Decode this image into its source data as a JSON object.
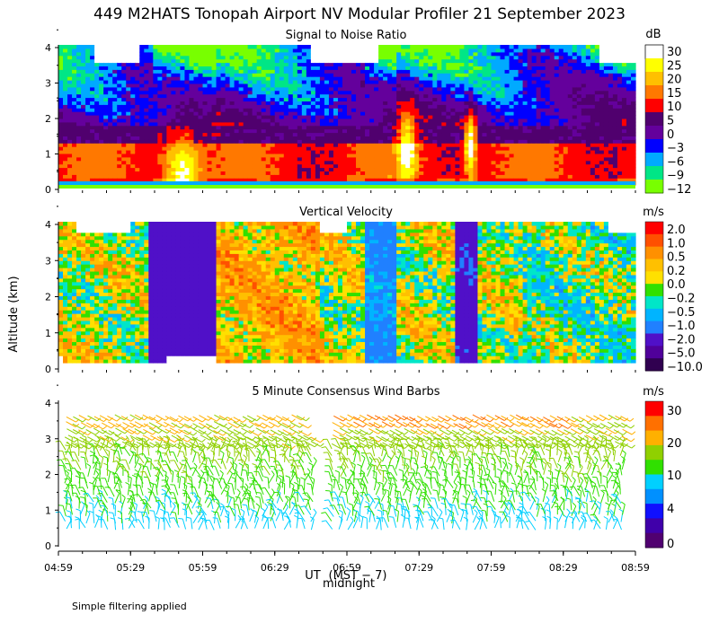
{
  "chart_data": {
    "type": "heatmap",
    "title": "449 M2HATS Tonopah Airport NV Modular Profiler 21 September 2023",
    "ylabel": "Altitude (km)",
    "xlabel": "UT",
    "xlabel_sub": "(MST − 7)",
    "x_marker": "midnight",
    "x_ticks": [
      "04:59",
      "05:29",
      "05:59",
      "06:29",
      "06:59",
      "07:29",
      "07:59",
      "08:29",
      "08:59"
    ],
    "y_ticks": [
      "0",
      "1",
      "2",
      "3",
      "4"
    ],
    "ylim": [
      0,
      4
    ],
    "footnote": "Simple filtering applied",
    "panels": [
      {
        "title": "Signal to Noise Ratio",
        "unit": "dB",
        "scale_labels": [
          "30",
          "25",
          "20",
          "15",
          "10",
          "5",
          "0",
          "−3",
          "−6",
          "−9",
          "−12"
        ],
        "colors": [
          "#ffffff",
          "#ffff00",
          "#ffc000",
          "#ff7800",
          "#ff0000",
          "#50006e",
          "#64009c",
          "#0000ff",
          "#00aaff",
          "#00e686",
          "#78ff00"
        ]
      },
      {
        "title": "Vertical Velocity",
        "unit": "m/s",
        "scale_labels": [
          "2.0",
          "1.0",
          "0.5",
          "0.2",
          "0.0",
          "−0.2",
          "−0.5",
          "−1.0",
          "−2.0",
          "−5.0",
          "−10.0"
        ],
        "colors": [
          "#ff0000",
          "#ff5000",
          "#ff9000",
          "#ffc000",
          "#ffe000",
          "#30e000",
          "#00e6c8",
          "#00b4ff",
          "#2080ff",
          "#5010c8",
          "#50009a",
          "#300050"
        ]
      },
      {
        "title": "5 Minute Consensus Wind Barbs",
        "unit": "m/s",
        "scale_labels": [
          "30",
          "20",
          "10",
          "4",
          "0"
        ],
        "colors": [
          "#ff0000",
          "#ff7000",
          "#ffb000",
          "#90d000",
          "#30e000",
          "#00d0ff",
          "#0090ff",
          "#1010ff",
          "#4000aa",
          "#500070"
        ]
      }
    ]
  }
}
